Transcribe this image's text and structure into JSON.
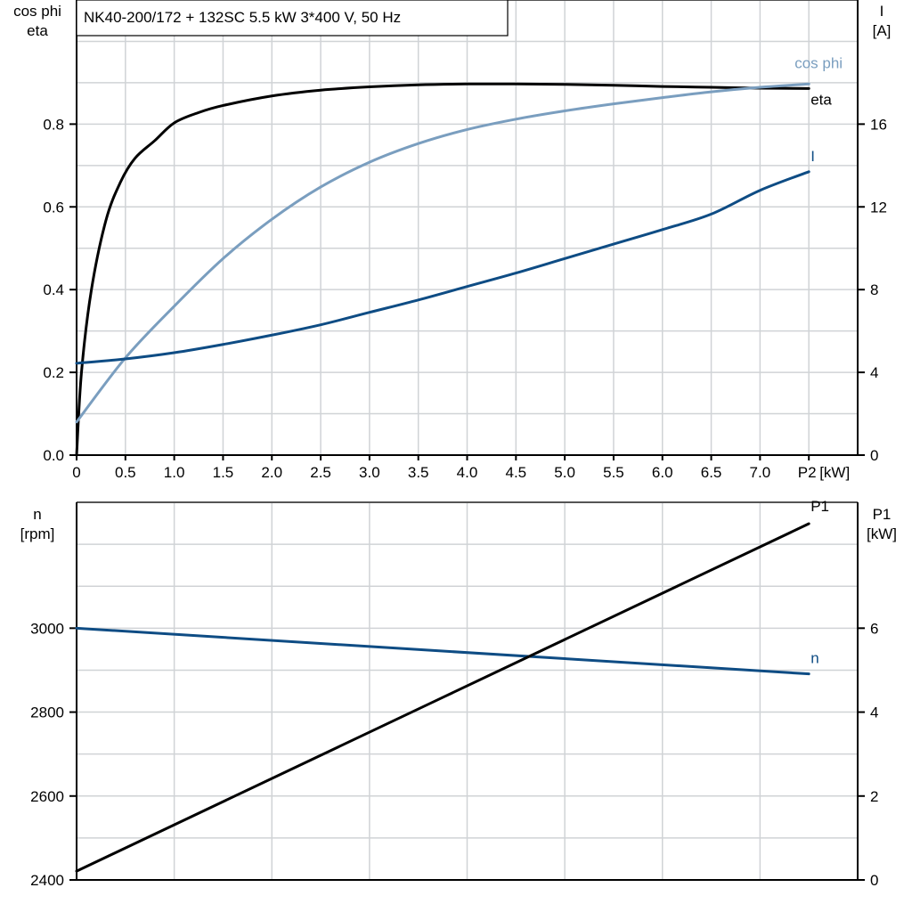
{
  "title": "NK40-200/172 + 132SC   5.5 kW   3*400 V, 50 Hz",
  "colors": {
    "eta": "#000000",
    "cos_phi": "#7a9ebf",
    "I": "#0e4c84",
    "n": "#0e4c84",
    "P1": "#000000",
    "grid": "#d0d3d6"
  },
  "chart_data": [
    {
      "type": "line",
      "xlabel": "P2 [kW]",
      "xlabel_parts": [
        "P2",
        "[kW]"
      ],
      "xlim": [
        0,
        8.0
      ],
      "x_ticks": [
        0,
        0.5,
        1.0,
        1.5,
        2.0,
        2.5,
        3.0,
        3.5,
        4.0,
        4.5,
        5.0,
        5.5,
        6.0,
        6.5,
        7.0
      ],
      "x_tick_labels": [
        "0",
        "0.5",
        "1.0",
        "1.5",
        "2.0",
        "2.5",
        "3.0",
        "3.5",
        "4.0",
        "4.5",
        "5.0",
        "5.5",
        "6.0",
        "6.5",
        "7.0"
      ],
      "ylabel_left": [
        "cos phi",
        "eta"
      ],
      "ylim_left": [
        0,
        1.1
      ],
      "y_ticks_left": [
        0,
        0.2,
        0.4,
        0.6,
        0.8
      ],
      "y_tick_labels_left": [
        "0.0",
        "0.2",
        "0.4",
        "0.6",
        "0.8"
      ],
      "ylabel_right": [
        "I",
        "[A]"
      ],
      "ylim_right": [
        0,
        22
      ],
      "y_ticks_right": [
        0,
        4,
        8,
        12,
        16
      ],
      "y_tick_labels_right": [
        "0",
        "4",
        "8",
        "12",
        "16"
      ],
      "grid": true,
      "series": [
        {
          "name": "eta",
          "axis": "left",
          "color": "#000000",
          "x": [
            0,
            0.05,
            0.15,
            0.3,
            0.45,
            0.6,
            0.8,
            1.0,
            1.25,
            1.5,
            2.0,
            2.5,
            3.0,
            3.5,
            4.0,
            4.5,
            5.0,
            5.5,
            6.0,
            6.5,
            7.0,
            7.5
          ],
          "y": [
            0,
            0.2,
            0.397,
            0.567,
            0.66,
            0.718,
            0.76,
            0.803,
            0.828,
            0.845,
            0.868,
            0.882,
            0.89,
            0.895,
            0.897,
            0.897,
            0.896,
            0.894,
            0.891,
            0.889,
            0.887,
            0.886
          ]
        },
        {
          "name": "cos phi",
          "axis": "left",
          "color": "#7a9ebf",
          "x": [
            0,
            0.5,
            1.0,
            1.5,
            2.0,
            2.5,
            3.0,
            3.5,
            4.0,
            4.5,
            5.0,
            5.5,
            6.0,
            6.5,
            7.0,
            7.5
          ],
          "y": [
            0.08,
            0.235,
            0.36,
            0.475,
            0.57,
            0.648,
            0.708,
            0.753,
            0.787,
            0.812,
            0.832,
            0.849,
            0.864,
            0.878,
            0.889,
            0.897
          ]
        },
        {
          "name": "I",
          "axis": "right",
          "color": "#0e4c84",
          "x": [
            0,
            0.5,
            1.0,
            1.5,
            2.0,
            2.5,
            3.0,
            3.5,
            4.0,
            4.5,
            5.0,
            5.5,
            6.0,
            6.5,
            7.0,
            7.5
          ],
          "y": [
            4.44,
            4.65,
            4.95,
            5.35,
            5.8,
            6.3,
            6.9,
            7.5,
            8.15,
            8.8,
            9.5,
            10.2,
            10.9,
            11.65,
            12.8,
            13.7
          ]
        }
      ]
    },
    {
      "type": "line",
      "xlim": [
        0,
        8.0
      ],
      "x_ticks": [
        1,
        2,
        3,
        4,
        5,
        6,
        7
      ],
      "ylabel_left": [
        "n",
        "[rpm]"
      ],
      "ylim_left": [
        2400,
        3300
      ],
      "y_ticks_left": [
        2400,
        2600,
        2800,
        3000
      ],
      "y_tick_labels_left": [
        "2400",
        "2600",
        "2800",
        "3000"
      ],
      "ylabel_right": [
        "P1",
        "[kW]"
      ],
      "ylim_right": [
        0,
        9
      ],
      "y_ticks_right": [
        0,
        2,
        4,
        6
      ],
      "y_tick_labels_right": [
        "0",
        "2",
        "4",
        "6"
      ],
      "grid": true,
      "series": [
        {
          "name": "n",
          "axis": "left",
          "color": "#0e4c84",
          "x": [
            0,
            7.5
          ],
          "y": [
            3000,
            2891
          ]
        },
        {
          "name": "P1",
          "axis": "right",
          "color": "#000000",
          "x": [
            0,
            7.5
          ],
          "y": [
            0.21,
            8.49
          ]
        }
      ]
    }
  ]
}
